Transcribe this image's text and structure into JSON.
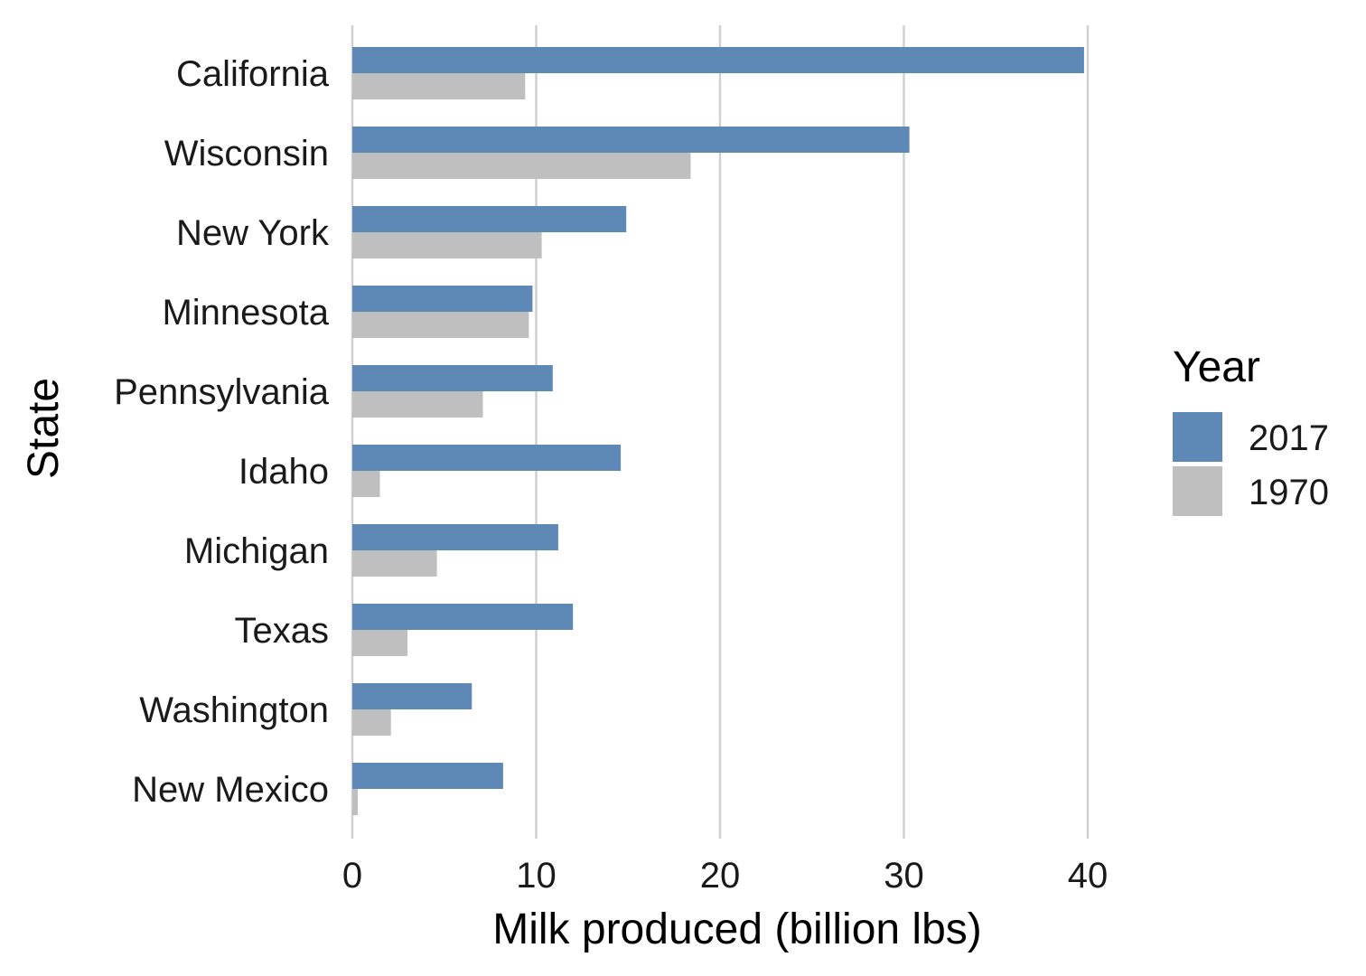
{
  "chart_data": {
    "type": "bar",
    "orientation": "horizontal",
    "categories": [
      "California",
      "Wisconsin",
      "New York",
      "Minnesota",
      "Pennsylvania",
      "Idaho",
      "Michigan",
      "Texas",
      "Washington",
      "New Mexico"
    ],
    "series": [
      {
        "name": "2017",
        "color": "#5e89b7",
        "values": [
          39.8,
          30.3,
          14.9,
          9.8,
          10.9,
          14.6,
          11.2,
          12.0,
          6.5,
          8.2
        ]
      },
      {
        "name": "1970",
        "color": "#bfbfbf",
        "values": [
          9.4,
          18.4,
          10.3,
          9.6,
          7.1,
          1.5,
          4.6,
          3.0,
          2.1,
          0.3
        ]
      }
    ],
    "xlabel": "Milk produced (billion lbs)",
    "ylabel": "State",
    "xlim": [
      0,
      40
    ],
    "xticks": [
      0,
      10,
      20,
      30,
      40
    ],
    "grid": "vertical major gridlines",
    "legend": {
      "title": "Year",
      "placement": "right"
    }
  }
}
